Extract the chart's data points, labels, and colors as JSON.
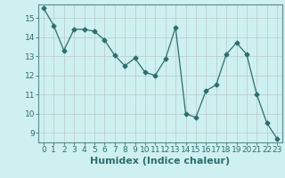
{
  "x": [
    0,
    1,
    2,
    3,
    4,
    5,
    6,
    7,
    8,
    9,
    10,
    11,
    12,
    13,
    14,
    15,
    16,
    17,
    18,
    19,
    20,
    21,
    22,
    23
  ],
  "y": [
    15.5,
    14.6,
    13.3,
    14.4,
    14.4,
    14.3,
    13.85,
    13.05,
    12.5,
    12.9,
    12.15,
    12.0,
    12.85,
    14.5,
    10.0,
    9.8,
    11.2,
    11.5,
    13.1,
    13.7,
    13.1,
    11.0,
    9.5,
    8.7
  ],
  "xlabel": "Humidex (Indice chaleur)",
  "ylim": [
    8.5,
    15.7
  ],
  "xlim": [
    -0.5,
    23.5
  ],
  "yticks": [
    9,
    10,
    11,
    12,
    13,
    14,
    15
  ],
  "xticks": [
    0,
    1,
    2,
    3,
    4,
    5,
    6,
    7,
    8,
    9,
    10,
    11,
    12,
    13,
    14,
    15,
    16,
    17,
    18,
    19,
    20,
    21,
    22,
    23
  ],
  "line_color": "#2d6e6e",
  "marker": "D",
  "marker_size": 2.5,
  "bg_color": "#cff0f0",
  "grid_color": "#b8c8c8",
  "xlabel_fontsize": 8,
  "tick_fontsize": 6.5
}
